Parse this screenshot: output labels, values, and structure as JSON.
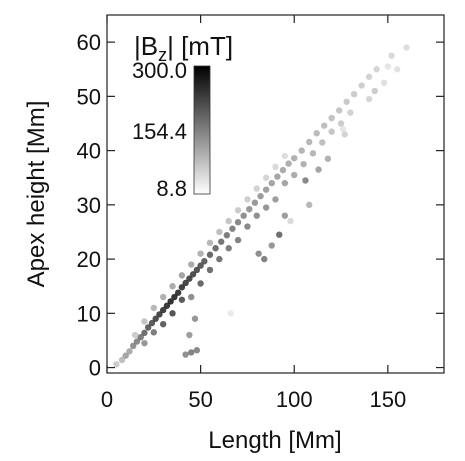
{
  "chart_data": {
    "type": "scatter",
    "title": "",
    "xlabel": "Length [Mm]",
    "ylabel": "Apex height [Mm]",
    "xlim": [
      0,
      180
    ],
    "ylim": [
      -1,
      65
    ],
    "xticks": [
      0,
      50,
      100,
      150
    ],
    "yticks": [
      0,
      10,
      20,
      30,
      40,
      50,
      60
    ],
    "colorbar": {
      "label_main": "|B",
      "label_sub": "z",
      "label_rest": "| [mT]",
      "min": 8.8,
      "mid": 154.4,
      "max": 300.0,
      "tick_labels": [
        "300.0",
        "154.4",
        "8.8"
      ],
      "colormap": "grayscale, white (low) to black (high)"
    },
    "points": [
      {
        "x": 5,
        "y": 0.6,
        "bz": 60
      },
      {
        "x": 8,
        "y": 1.4,
        "bz": 80
      },
      {
        "x": 10,
        "y": 2.2,
        "bz": 120
      },
      {
        "x": 12,
        "y": 3.0,
        "bz": 110
      },
      {
        "x": 14,
        "y": 4.0,
        "bz": 150
      },
      {
        "x": 16,
        "y": 4.8,
        "bz": 160
      },
      {
        "x": 18,
        "y": 5.6,
        "bz": 180
      },
      {
        "x": 20,
        "y": 6.4,
        "bz": 200
      },
      {
        "x": 22,
        "y": 7.4,
        "bz": 220
      },
      {
        "x": 24,
        "y": 8.2,
        "bz": 230
      },
      {
        "x": 26,
        "y": 9.0,
        "bz": 250
      },
      {
        "x": 28,
        "y": 9.8,
        "bz": 260
      },
      {
        "x": 30,
        "y": 10.6,
        "bz": 270
      },
      {
        "x": 32,
        "y": 11.4,
        "bz": 280
      },
      {
        "x": 34,
        "y": 12.2,
        "bz": 290
      },
      {
        "x": 36,
        "y": 13.0,
        "bz": 285
      },
      {
        "x": 38,
        "y": 13.8,
        "bz": 280
      },
      {
        "x": 40,
        "y": 14.8,
        "bz": 270
      },
      {
        "x": 42,
        "y": 15.6,
        "bz": 260
      },
      {
        "x": 44,
        "y": 16.4,
        "bz": 255
      },
      {
        "x": 46,
        "y": 17.2,
        "bz": 250
      },
      {
        "x": 48,
        "y": 18.0,
        "bz": 240
      },
      {
        "x": 50,
        "y": 18.8,
        "bz": 230
      },
      {
        "x": 52,
        "y": 19.6,
        "bz": 220
      },
      {
        "x": 55,
        "y": 20.8,
        "bz": 210
      },
      {
        "x": 58,
        "y": 22.0,
        "bz": 200
      },
      {
        "x": 61,
        "y": 23.2,
        "bz": 190
      },
      {
        "x": 64,
        "y": 24.4,
        "bz": 180
      },
      {
        "x": 67,
        "y": 25.6,
        "bz": 170
      },
      {
        "x": 70,
        "y": 26.8,
        "bz": 160
      },
      {
        "x": 73,
        "y": 28.0,
        "bz": 150
      },
      {
        "x": 76,
        "y": 29.2,
        "bz": 140
      },
      {
        "x": 79,
        "y": 30.4,
        "bz": 135
      },
      {
        "x": 82,
        "y": 31.6,
        "bz": 130
      },
      {
        "x": 85,
        "y": 32.8,
        "bz": 125
      },
      {
        "x": 88,
        "y": 34.0,
        "bz": 120
      },
      {
        "x": 91,
        "y": 35.2,
        "bz": 115
      },
      {
        "x": 94,
        "y": 36.4,
        "bz": 110
      },
      {
        "x": 97,
        "y": 37.6,
        "bz": 105
      },
      {
        "x": 100,
        "y": 38.6,
        "bz": 100
      },
      {
        "x": 104,
        "y": 40.0,
        "bz": 95
      },
      {
        "x": 108,
        "y": 41.6,
        "bz": 90
      },
      {
        "x": 112,
        "y": 43.2,
        "bz": 85
      },
      {
        "x": 116,
        "y": 44.6,
        "bz": 80
      },
      {
        "x": 120,
        "y": 46.0,
        "bz": 75
      },
      {
        "x": 124,
        "y": 47.4,
        "bz": 70
      },
      {
        "x": 128,
        "y": 49.0,
        "bz": 65
      },
      {
        "x": 132,
        "y": 50.4,
        "bz": 60
      },
      {
        "x": 136,
        "y": 52.0,
        "bz": 55
      },
      {
        "x": 140,
        "y": 53.6,
        "bz": 50
      },
      {
        "x": 144,
        "y": 55.0,
        "bz": 45
      },
      {
        "x": 152,
        "y": 57.5,
        "bz": 40
      },
      {
        "x": 160,
        "y": 59.0,
        "bz": 35
      },
      {
        "x": 20,
        "y": 4.5,
        "bz": 140
      },
      {
        "x": 25,
        "y": 6.5,
        "bz": 180
      },
      {
        "x": 30,
        "y": 8.0,
        "bz": 220
      },
      {
        "x": 35,
        "y": 10.0,
        "bz": 240
      },
      {
        "x": 40,
        "y": 12.5,
        "bz": 230
      },
      {
        "x": 45,
        "y": 13.0,
        "bz": 150
      },
      {
        "x": 50,
        "y": 15.5,
        "bz": 210
      },
      {
        "x": 55,
        "y": 18.0,
        "bz": 200
      },
      {
        "x": 60,
        "y": 20.0,
        "bz": 190
      },
      {
        "x": 65,
        "y": 22.0,
        "bz": 180
      },
      {
        "x": 70,
        "y": 23.5,
        "bz": 170
      },
      {
        "x": 75,
        "y": 26.0,
        "bz": 160
      },
      {
        "x": 80,
        "y": 28.0,
        "bz": 150
      },
      {
        "x": 85,
        "y": 29.5,
        "bz": 140
      },
      {
        "x": 90,
        "y": 31.0,
        "bz": 130
      },
      {
        "x": 95,
        "y": 34.0,
        "bz": 120
      },
      {
        "x": 100,
        "y": 35.5,
        "bz": 110
      },
      {
        "x": 105,
        "y": 37.5,
        "bz": 100
      },
      {
        "x": 110,
        "y": 39.5,
        "bz": 90
      },
      {
        "x": 115,
        "y": 41.5,
        "bz": 80
      },
      {
        "x": 120,
        "y": 43.5,
        "bz": 70
      },
      {
        "x": 125,
        "y": 45.0,
        "bz": 60
      },
      {
        "x": 130,
        "y": 47.0,
        "bz": 50
      },
      {
        "x": 15,
        "y": 6.0,
        "bz": 60
      },
      {
        "x": 20,
        "y": 8.5,
        "bz": 70
      },
      {
        "x": 25,
        "y": 11.0,
        "bz": 90
      },
      {
        "x": 30,
        "y": 13.0,
        "bz": 100
      },
      {
        "x": 35,
        "y": 15.0,
        "bz": 110
      },
      {
        "x": 40,
        "y": 17.0,
        "bz": 120
      },
      {
        "x": 45,
        "y": 19.0,
        "bz": 110
      },
      {
        "x": 50,
        "y": 21.0,
        "bz": 100
      },
      {
        "x": 55,
        "y": 23.0,
        "bz": 90
      },
      {
        "x": 60,
        "y": 25.0,
        "bz": 80
      },
      {
        "x": 65,
        "y": 27.0,
        "bz": 70
      },
      {
        "x": 70,
        "y": 29.0,
        "bz": 60
      },
      {
        "x": 75,
        "y": 31.0,
        "bz": 55
      },
      {
        "x": 80,
        "y": 33.0,
        "bz": 50
      },
      {
        "x": 85,
        "y": 35.0,
        "bz": 45
      },
      {
        "x": 90,
        "y": 37.0,
        "bz": 40
      },
      {
        "x": 95,
        "y": 39.0,
        "bz": 35
      },
      {
        "x": 45,
        "y": 2.8,
        "bz": 170
      },
      {
        "x": 42,
        "y": 2.4,
        "bz": 150
      },
      {
        "x": 48,
        "y": 3.2,
        "bz": 160
      },
      {
        "x": 44,
        "y": 6.0,
        "bz": 130
      },
      {
        "x": 47,
        "y": 9.0,
        "bz": 140
      },
      {
        "x": 81,
        "y": 21.0,
        "bz": 150
      },
      {
        "x": 84,
        "y": 20.0,
        "bz": 170
      },
      {
        "x": 88,
        "y": 22.5,
        "bz": 140
      },
      {
        "x": 92,
        "y": 24.5,
        "bz": 200
      },
      {
        "x": 95,
        "y": 28.0,
        "bz": 130
      },
      {
        "x": 108,
        "y": 30.0,
        "bz": 90
      },
      {
        "x": 106,
        "y": 34.5,
        "bz": 160
      },
      {
        "x": 113,
        "y": 36.5,
        "bz": 120
      },
      {
        "x": 118,
        "y": 38.5,
        "bz": 100
      },
      {
        "x": 140,
        "y": 49.5,
        "bz": 45
      },
      {
        "x": 143,
        "y": 51.0,
        "bz": 60
      },
      {
        "x": 150,
        "y": 55.5,
        "bz": 20
      },
      {
        "x": 155,
        "y": 55.0,
        "bz": 25
      },
      {
        "x": 148,
        "y": 52.5,
        "bz": 30
      },
      {
        "x": 127,
        "y": 43.0,
        "bz": 50
      },
      {
        "x": 66,
        "y": 10.0,
        "bz": 15
      },
      {
        "x": 98,
        "y": 27.0,
        "bz": 40
      },
      {
        "x": 126,
        "y": 44.0,
        "bz": 20
      }
    ]
  }
}
